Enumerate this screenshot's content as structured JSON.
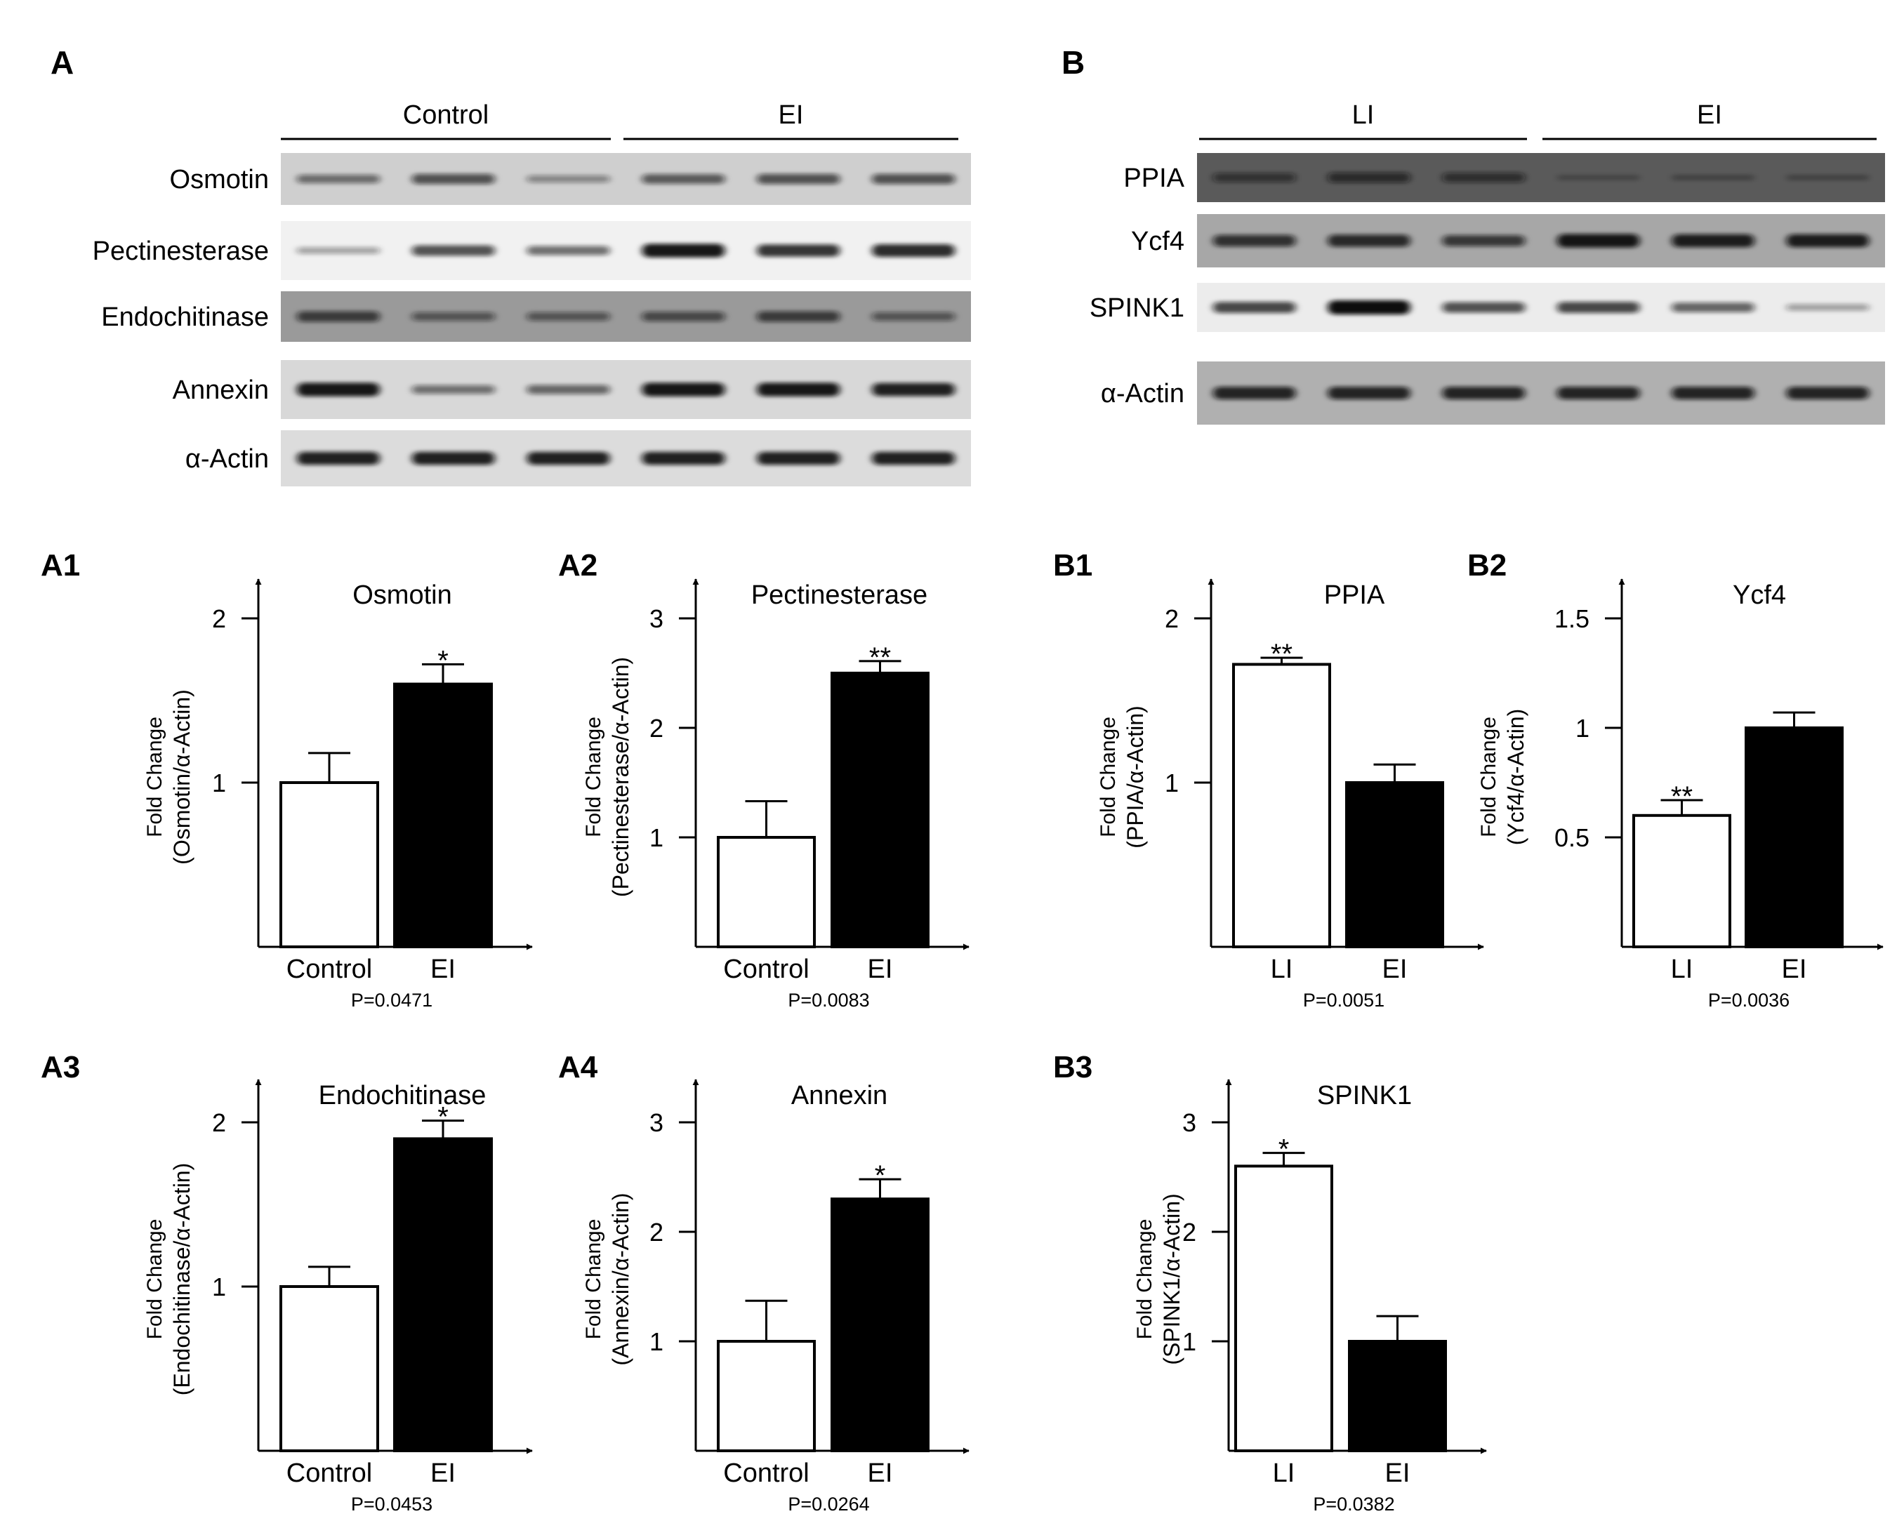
{
  "panel_a": {
    "letter": "A",
    "groups": [
      "Control",
      "EI"
    ],
    "rows": [
      {
        "label": "Osmotin",
        "bg": "#cfcfcf",
        "intensities": [
          0.45,
          0.6,
          0.3,
          0.55,
          0.6,
          0.6
        ]
      },
      {
        "label": "Pectinesterase",
        "bg": "#f1f1f1",
        "intensities": [
          0.25,
          0.65,
          0.5,
          0.95,
          0.8,
          0.85
        ]
      },
      {
        "label": "Endochitinase",
        "bg": "#9a9a9a",
        "intensities": [
          0.65,
          0.45,
          0.45,
          0.55,
          0.65,
          0.45
        ]
      },
      {
        "label": "Annexin",
        "bg": "#d8d8d8",
        "intensities": [
          0.95,
          0.45,
          0.5,
          0.95,
          0.95,
          0.9
        ]
      },
      {
        "label": "α-Actin",
        "bg": "#dcdcdc",
        "intensities": [
          0.9,
          0.9,
          0.9,
          0.9,
          0.9,
          0.9
        ]
      }
    ]
  },
  "panel_b": {
    "letter": "B",
    "groups": [
      "LI",
      "EI"
    ],
    "rows": [
      {
        "label": "PPIA",
        "bg": "#5a5a5a",
        "intensities": [
          0.5,
          0.6,
          0.55,
          0.12,
          0.15,
          0.15
        ]
      },
      {
        "label": "Ycf4",
        "bg": "#a7a7a7",
        "intensities": [
          0.75,
          0.8,
          0.7,
          0.95,
          0.9,
          0.9
        ]
      },
      {
        "label": "SPINK1",
        "bg": "#ececec",
        "intensities": [
          0.7,
          1.0,
          0.65,
          0.7,
          0.55,
          0.25
        ]
      },
      {
        "label": "α-Actin",
        "bg": "#b0b0b0",
        "intensities": [
          0.85,
          0.85,
          0.85,
          0.85,
          0.85,
          0.85
        ]
      }
    ]
  },
  "chart_data": [
    {
      "panel": "A1",
      "type": "bar",
      "title": "Osmotin",
      "ylabel_line1": "Fold Change",
      "ylabel_line2": "(Osmotin/α-Actin)",
      "categories": [
        "Control",
        "EI"
      ],
      "values": [
        1.0,
        1.6
      ],
      "errors": [
        0.18,
        0.12
      ],
      "colors": [
        "#ffffff",
        "#000000"
      ],
      "significance": [
        "",
        "*"
      ],
      "pvalue": "P=0.0471",
      "yticks": [
        "1",
        "2"
      ],
      "ylim": [
        0,
        2.4
      ]
    },
    {
      "panel": "A2",
      "type": "bar",
      "title": "Pectinesterase",
      "ylabel_line1": "Fold Change",
      "ylabel_line2": "(Pectinesterase/α-Actin)",
      "categories": [
        "Control",
        "EI"
      ],
      "values": [
        1.0,
        2.5
      ],
      "errors": [
        0.33,
        0.11
      ],
      "colors": [
        "#ffffff",
        "#000000"
      ],
      "significance": [
        "",
        "**"
      ],
      "pvalue": "P=0.0083",
      "yticks": [
        "1",
        "2",
        "3"
      ],
      "ylim": [
        0,
        3.6
      ]
    },
    {
      "panel": "B1",
      "type": "bar",
      "title": "PPIA",
      "ylabel_line1": "Fold Change",
      "ylabel_line2": "(PPIA/α-Actin)",
      "categories": [
        "LI",
        "EI"
      ],
      "values": [
        1.72,
        1.0
      ],
      "errors": [
        0.04,
        0.11
      ],
      "colors": [
        "#ffffff",
        "#000000"
      ],
      "significance": [
        "**",
        ""
      ],
      "pvalue": "P=0.0051",
      "yticks": [
        "1",
        "2"
      ],
      "ylim": [
        0,
        2.4
      ]
    },
    {
      "panel": "B2",
      "type": "bar",
      "title": "Ycf4",
      "ylabel_line1": "Fold Change",
      "ylabel_line2": "(Ycf4/α-Actin)",
      "categories": [
        "LI",
        "EI"
      ],
      "values": [
        0.6,
        1.0
      ],
      "errors": [
        0.07,
        0.07
      ],
      "colors": [
        "#ffffff",
        "#000000"
      ],
      "significance": [
        "**",
        ""
      ],
      "pvalue": "P=0.0036",
      "yticks": [
        "0.5",
        "1",
        "1.5"
      ],
      "ylim": [
        0,
        1.8
      ]
    },
    {
      "panel": "A3",
      "type": "bar",
      "title": "Endochitinase",
      "ylabel_line1": "Fold Change",
      "ylabel_line2": "(Endochitinase/α-Actin)",
      "categories": [
        "Control",
        "EI"
      ],
      "values": [
        1.0,
        1.9
      ],
      "errors": [
        0.12,
        0.11
      ],
      "colors": [
        "#ffffff",
        "#000000"
      ],
      "significance": [
        "",
        "*"
      ],
      "pvalue": "P=0.0453",
      "yticks": [
        "1",
        "2"
      ],
      "ylim": [
        0,
        2.4
      ]
    },
    {
      "panel": "A4",
      "type": "bar",
      "title": "Annexin",
      "ylabel_line1": "Fold Change",
      "ylabel_line2": "(Annexin/α-Actin)",
      "categories": [
        "Control",
        "EI"
      ],
      "values": [
        1.0,
        2.3
      ],
      "errors": [
        0.37,
        0.18
      ],
      "colors": [
        "#ffffff",
        "#000000"
      ],
      "significance": [
        "",
        "*"
      ],
      "pvalue": "P=0.0264",
      "yticks": [
        "1",
        "2",
        "3"
      ],
      "ylim": [
        0,
        3.6
      ]
    },
    {
      "panel": "B3",
      "type": "bar",
      "title": "SPINK1",
      "ylabel_line1": "Fold Change",
      "ylabel_line2": "(SPINK1/α-Actin)",
      "categories": [
        "LI",
        "EI"
      ],
      "values": [
        2.6,
        1.0
      ],
      "errors": [
        0.12,
        0.23
      ],
      "colors": [
        "#ffffff",
        "#000000"
      ],
      "significance": [
        "*",
        ""
      ],
      "pvalue": "P=0.0382",
      "yticks": [
        "1",
        "2",
        "3"
      ],
      "ylim": [
        0,
        3.6
      ]
    }
  ]
}
